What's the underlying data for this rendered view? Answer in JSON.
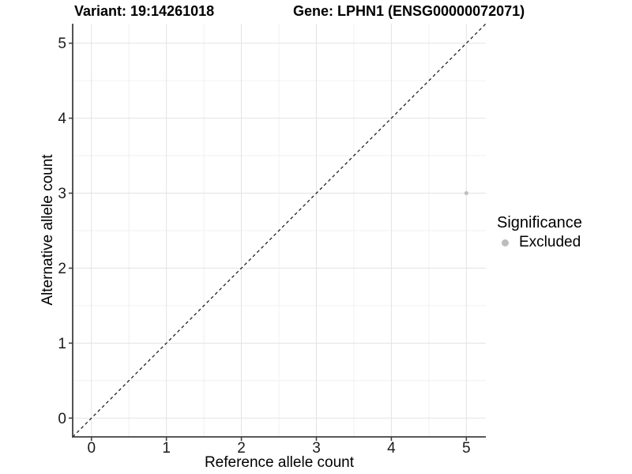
{
  "header": {
    "variant_title": "Variant: 19:14261018",
    "gene_title": "Gene: LPHN1 (ENSG00000072071)"
  },
  "chart_data": {
    "type": "scatter",
    "xlabel": "Reference allele count",
    "ylabel": "Alternative allele count",
    "xlim": [
      -0.25,
      5.26
    ],
    "ylim": [
      -0.25,
      5.26
    ],
    "xticks": [
      0,
      1,
      2,
      3,
      4,
      5
    ],
    "yticks": [
      0,
      1,
      2,
      3,
      4,
      5
    ],
    "x_minor": [
      0.5,
      1.5,
      2.5,
      3.5,
      4.5
    ],
    "y_minor": [
      0.5,
      1.5,
      2.5,
      3.5,
      4.5
    ],
    "grid": "major+minor",
    "identity_line": {
      "style": "dashed",
      "from": [
        -0.25,
        -0.25
      ],
      "to": [
        5.26,
        5.26
      ]
    },
    "series": [
      {
        "name": "Excluded",
        "color": "#bdbdbd",
        "point_radius": 2.5,
        "points": [
          [
            5,
            3
          ]
        ]
      }
    ],
    "legend": {
      "position": "right",
      "title": "Significance",
      "items": [
        {
          "label": "Excluded",
          "color": "#bdbdbd"
        }
      ]
    }
  },
  "colors": {
    "background": "#ffffff",
    "grid_major": "#e3e3e3",
    "grid_minor": "#f0f0f0",
    "axis_line": "#404040",
    "tick_text": "#1a1a1a",
    "identity_line": "#111111"
  }
}
